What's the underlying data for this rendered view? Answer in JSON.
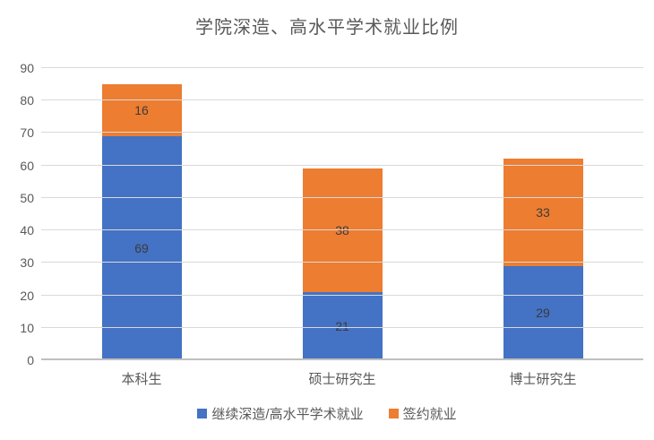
{
  "chart_data": {
    "type": "bar",
    "stacked": true,
    "title": "学院深造、高水平学术就业比例",
    "categories": [
      "本科生",
      "硕士研究生",
      "博士研究生"
    ],
    "series": [
      {
        "name": "继续深造/高水平学术就业",
        "color": "#4472C4",
        "values": [
          69,
          21,
          29
        ]
      },
      {
        "name": "签约就业",
        "color": "#ED7D31",
        "values": [
          16,
          38,
          33
        ]
      }
    ],
    "totals": [
      85,
      59,
      62
    ],
    "xlabel": "",
    "ylabel": "",
    "ylim": [
      0,
      90
    ],
    "ytick_step": 10,
    "ytick_labels": [
      "0",
      "10",
      "20",
      "30",
      "40",
      "50",
      "60",
      "70",
      "80",
      "90"
    ],
    "grid": true,
    "gridline_color": "#D9D9D9",
    "legend_position": "bottom",
    "data_labels": true
  },
  "colors": {
    "background": "#FFFFFF",
    "title_text": "#595959",
    "axis_text": "#595959",
    "data_label_text": "#3B3B3B",
    "series1": "#4472C4",
    "series2": "#ED7D31"
  }
}
